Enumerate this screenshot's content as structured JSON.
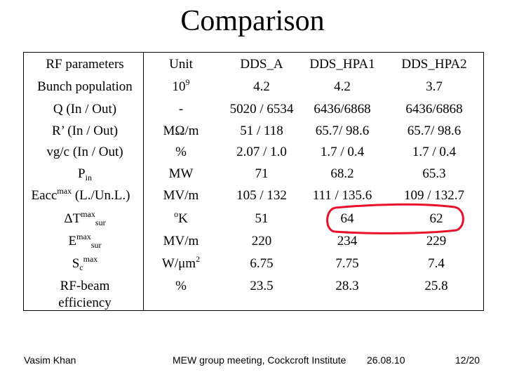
{
  "title": "Comparison",
  "table": {
    "headers": [
      "RF parameters",
      "Unit",
      "DDS_A",
      "DDS_HPA1",
      "DDS_HPA2"
    ],
    "rows": [
      {
        "param": "Bunch population",
        "unit_base": "10",
        "unit_sup": "9",
        "a": "4.2",
        "h1": "4.2",
        "h2": "3.7"
      },
      {
        "param": "Q (In / Out)",
        "unit": "-",
        "a": "5020 / 6534",
        "h1": "6436/6868",
        "h2": "6436/6868"
      },
      {
        "param": "R’ (In / Out)",
        "unit": "MΩ/m",
        "a": "51 / 118",
        "h1": "65.7/ 98.6",
        "h2": "65.7/ 98.6"
      },
      {
        "param": "vg/c (In / Out)",
        "unit": "%",
        "a": "2.07 / 1.0",
        "h1": "1.7 / 0.4",
        "h2": "1.7 / 0.4"
      },
      {
        "param_base": "P",
        "param_sub": "in",
        "unit": "MW",
        "a": "71",
        "h1": "68.2",
        "h2": "65.3"
      },
      {
        "param_base": "Eacc",
        "param_sup": "max",
        "param_rest": " (L./Un.L.)",
        "unit": "MV/m",
        "a": "105 / 132",
        "h1": "111 / 135.6",
        "h2": "109 / 132.7"
      },
      {
        "param_base": "ΔT",
        "param_sup": "max",
        "param_sub": "sur",
        "unit_sup": "o",
        "unit_rest": "K",
        "a": "51",
        "h1": "64",
        "h2": "62"
      },
      {
        "param_base": "E",
        "param_sup": "max",
        "param_sub": "sur",
        "unit": "MV/m",
        "a": "220",
        "h1": "234",
        "h2": "229"
      },
      {
        "param_base": "S",
        "param_sub": "c",
        "param_sup": "max",
        "unit_base": "W/μm",
        "unit_sup": "2",
        "a": "6.75",
        "h1": "7.75",
        "h2": "7.4"
      },
      {
        "param_line1": "RF-beam",
        "param_line2": "efficiency",
        "unit": "%",
        "a": "23.5",
        "h1": "28.3",
        "h2": "25.8"
      }
    ]
  },
  "footer": {
    "author": "Vasim Khan",
    "event": "MEW group meeting, Cockcroft Institute",
    "date": "26.08.10",
    "page": "12/20"
  },
  "highlight_color": "#e8102a"
}
